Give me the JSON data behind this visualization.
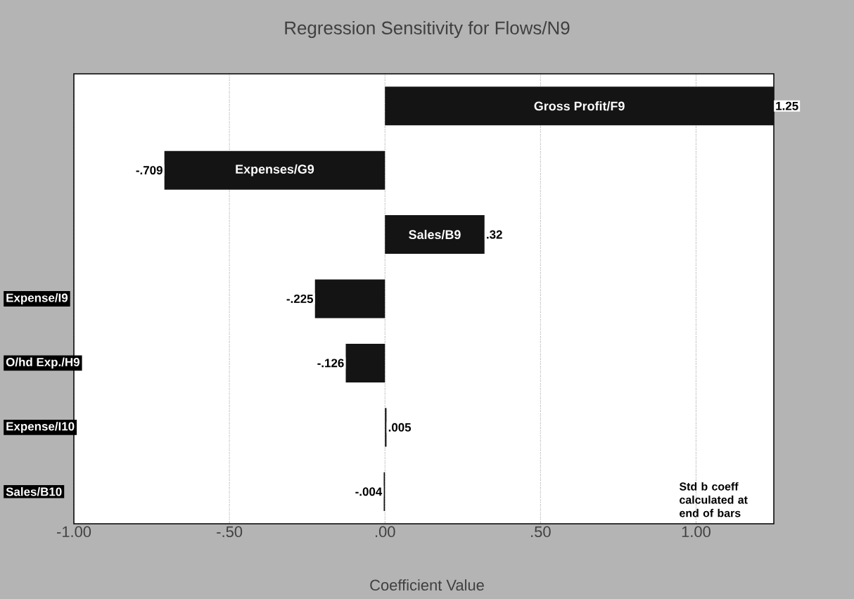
{
  "chart_data": {
    "type": "bar",
    "orientation": "horizontal",
    "title": "Regression Sensitivity for Flows/N9",
    "xlabel": "Coefficient Value",
    "categories": [
      "Gross Profit/F9",
      "Expenses/G9",
      "Sales/B9",
      "Expense/I9",
      "O/hd Exp./H9",
      "Expense/I10",
      "Sales/B10"
    ],
    "values": [
      1.25,
      -0.709,
      0.32,
      -0.225,
      -0.126,
      0.005,
      -0.004
    ],
    "value_labels": [
      "1.25",
      "-.709",
      ".32",
      "-.225",
      "-.126",
      ".005",
      "-.004"
    ],
    "color": "#141414",
    "xlim": [
      -1.0,
      1.25
    ],
    "xticks": [
      {
        "value": -1.0,
        "label": "-1.00"
      },
      {
        "value": -0.5,
        "label": "-.50"
      },
      {
        "value": 0.0,
        "label": ".00"
      },
      {
        "value": 0.5,
        "label": ".50"
      },
      {
        "value": 1.0,
        "label": "1.00"
      }
    ],
    "grid": "x",
    "annotations": [
      "Std b coeff calculated at end of bars"
    ]
  }
}
